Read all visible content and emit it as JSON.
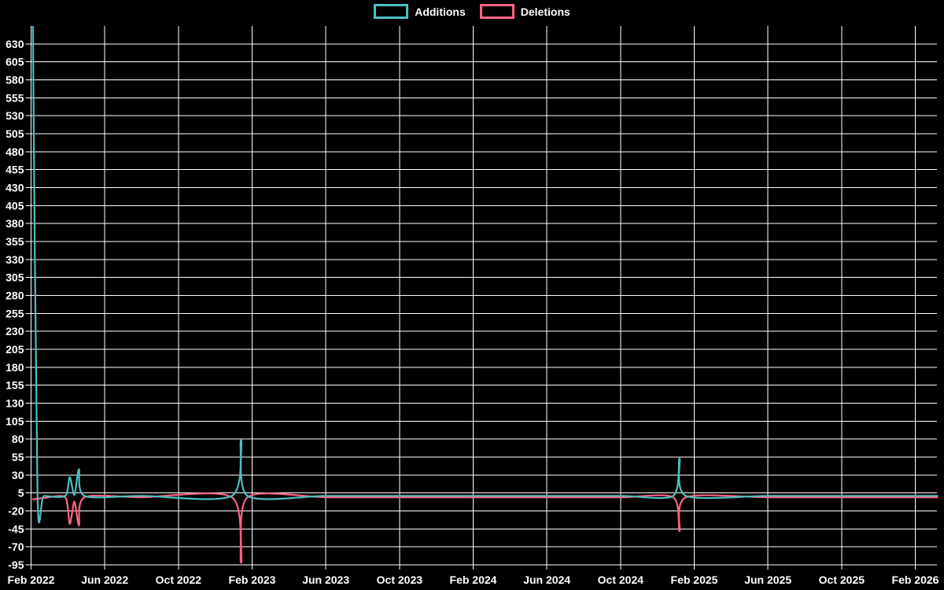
{
  "chart_data": {
    "type": "line",
    "title": "",
    "legend_position": "top",
    "background_color": "#000000",
    "grid_color": "#ffffff",
    "text_color": "#ffffff",
    "x_axis": {
      "tick_labels": [
        "Feb 2022",
        "Jun 2022",
        "Oct 2022",
        "Feb 2023",
        "Jun 2023",
        "Oct 2023",
        "Feb 2024",
        "Jun 2024",
        "Oct 2024",
        "Feb 2025",
        "Jun 2025",
        "Oct 2025",
        "Feb 2026"
      ],
      "tick_interval_months": 4,
      "months_span": 48,
      "plot_extends_to_month": 49.2
    },
    "y_axis": {
      "min": -95,
      "max": 655,
      "tick_step": 25,
      "tick_labels": [
        630,
        605,
        580,
        555,
        530,
        505,
        480,
        455,
        430,
        405,
        380,
        355,
        330,
        305,
        280,
        255,
        230,
        205,
        180,
        155,
        130,
        105,
        80,
        55,
        30,
        5,
        -20,
        -45,
        -70,
        -95
      ]
    },
    "series": [
      {
        "name": "Additions",
        "color": "#4bc0c0",
        "points": [
          [
            0.1,
            655
          ],
          [
            0.35,
            3
          ],
          [
            0.7,
            1
          ],
          [
            1.85,
            1
          ],
          [
            2.1,
            27
          ],
          [
            2.35,
            2
          ],
          [
            2.6,
            38
          ],
          [
            2.9,
            1
          ],
          [
            6,
            1
          ],
          [
            10.9,
            1
          ],
          [
            11.4,
            79
          ],
          [
            11.75,
            1
          ],
          [
            16,
            1
          ],
          [
            20,
            1
          ],
          [
            24,
            1
          ],
          [
            28,
            1
          ],
          [
            32,
            1
          ],
          [
            34.85,
            1
          ],
          [
            35.2,
            53
          ],
          [
            35.55,
            1
          ],
          [
            40,
            1
          ],
          [
            45,
            1
          ],
          [
            49.2,
            1
          ]
        ]
      },
      {
        "name": "Deletions",
        "color": "#ff6384",
        "points": [
          [
            0.1,
            -4
          ],
          [
            0.35,
            -3
          ],
          [
            0.7,
            -2
          ],
          [
            1.85,
            -1
          ],
          [
            2.1,
            -38
          ],
          [
            2.35,
            -7
          ],
          [
            2.6,
            -40
          ],
          [
            2.9,
            -1
          ],
          [
            6,
            -1
          ],
          [
            10.9,
            -1
          ],
          [
            11.4,
            -92
          ],
          [
            11.75,
            -1
          ],
          [
            16,
            -1
          ],
          [
            20,
            -1
          ],
          [
            24,
            -1
          ],
          [
            28,
            -1
          ],
          [
            32,
            -1
          ],
          [
            34.85,
            -1
          ],
          [
            35.2,
            -48
          ],
          [
            35.55,
            -1
          ],
          [
            40,
            -1
          ],
          [
            45,
            -1
          ],
          [
            49.2,
            -1
          ]
        ]
      }
    ]
  }
}
